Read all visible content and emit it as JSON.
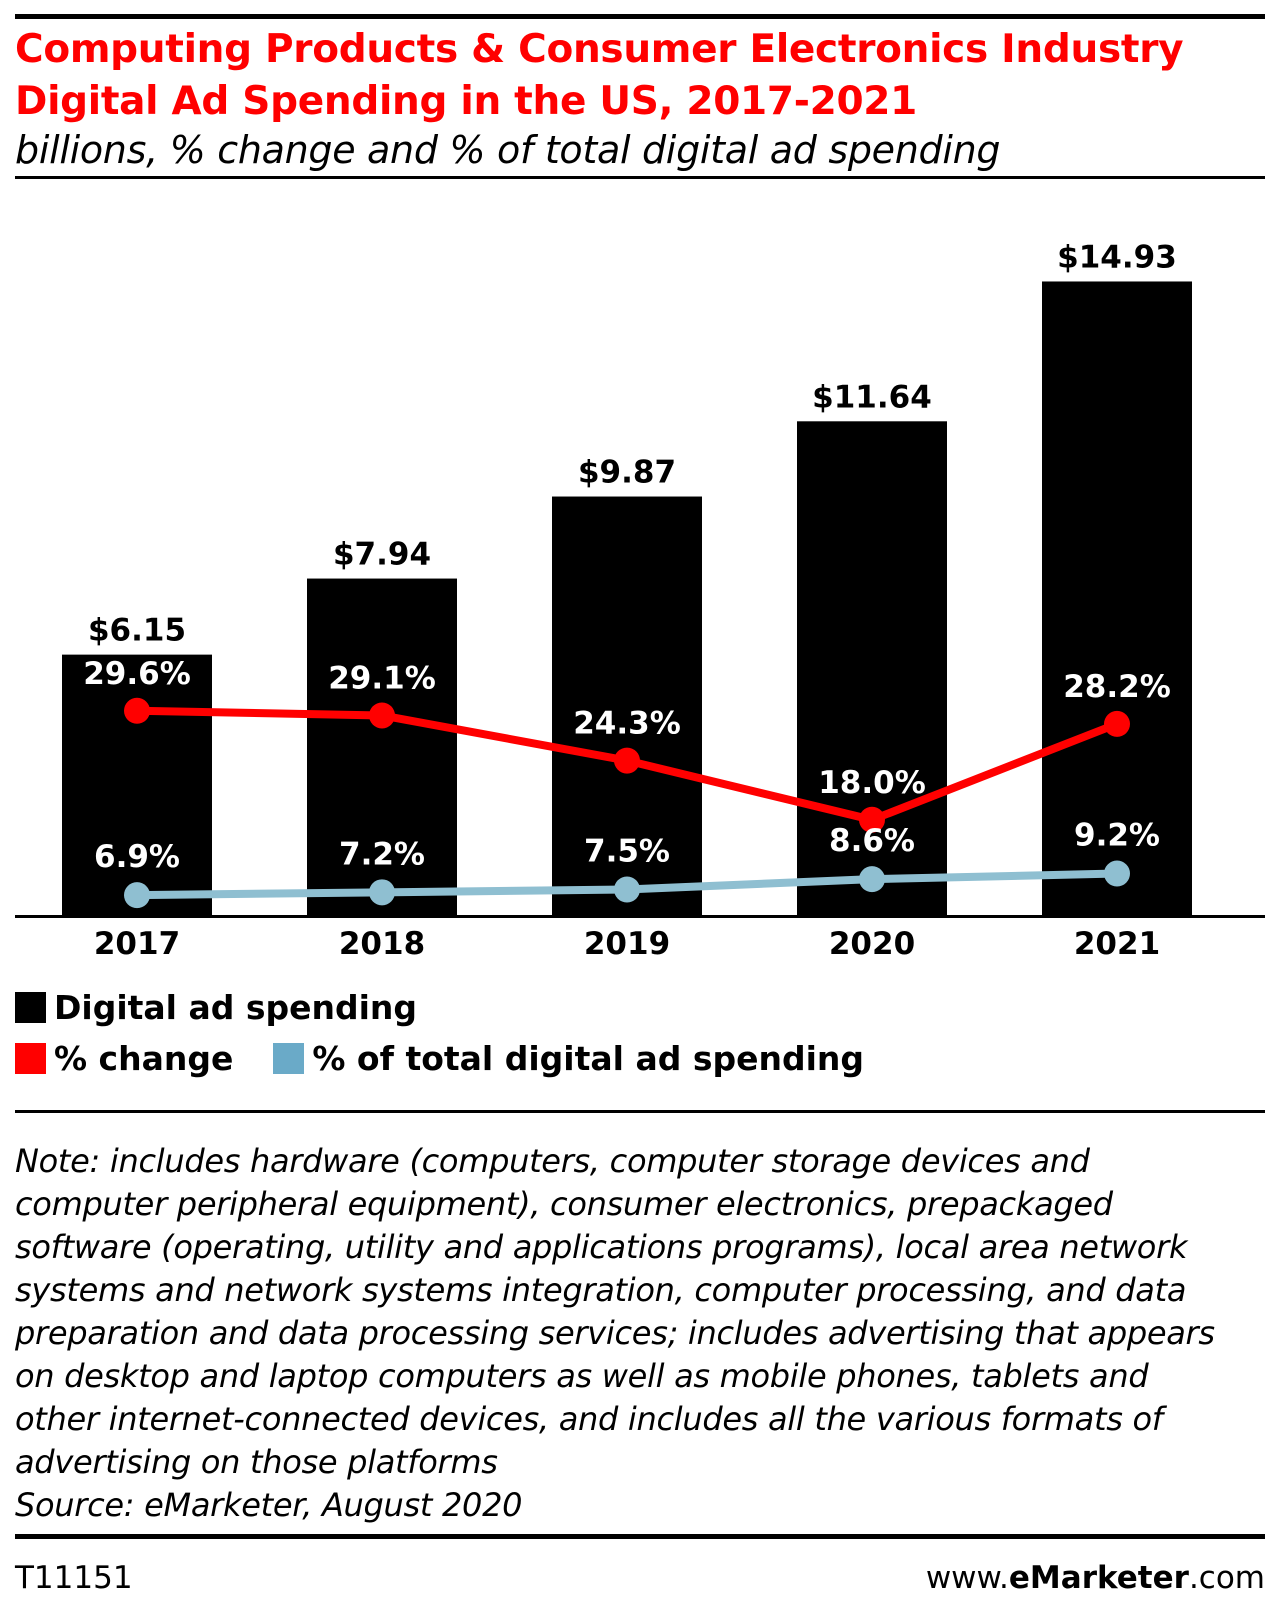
{
  "title_lines": [
    "Computing Products & Consumer Electronics Industry",
    "Digital Ad Spending in the US, 2017-2021"
  ],
  "subtitle": "billions, % change and % of total digital ad spending",
  "colors": {
    "title": "#ff0000",
    "bars": "#000000",
    "pct_change": "#ff0000",
    "pct_total": "#8fbfd1",
    "legend_total_swatch": "#6aaac8"
  },
  "chart_data": {
    "type": "bar",
    "categories": [
      "2017",
      "2018",
      "2019",
      "2020",
      "2021"
    ],
    "series": [
      {
        "name": "Digital ad spending",
        "type": "bar",
        "values": [
          6.15,
          7.94,
          9.87,
          11.64,
          14.93
        ],
        "labels": [
          "$6.15",
          "$7.94",
          "$9.87",
          "$11.64",
          "$14.93"
        ]
      },
      {
        "name": "% change",
        "type": "line",
        "values": [
          29.6,
          29.1,
          24.3,
          18.0,
          28.2
        ],
        "labels": [
          "29.6%",
          "29.1%",
          "24.3%",
          "18.0%",
          "28.2%"
        ]
      },
      {
        "name": "% of total digital ad spending",
        "type": "line",
        "values": [
          6.9,
          7.2,
          7.5,
          8.6,
          9.2
        ],
        "labels": [
          "6.9%",
          "7.2%",
          "7.5%",
          "8.6%",
          "9.2%"
        ]
      }
    ]
  },
  "legend": {
    "spending": "Digital ad spending",
    "change": "% change",
    "total": "% of total digital ad spending"
  },
  "note_lines": [
    "Note: includes hardware (computers, computer storage devices and",
    "computer peripheral equipment), consumer electronics, prepackaged",
    "software (operating, utility and applications programs), local area network",
    "systems and network systems integration, computer processing, and data",
    "preparation and data processing services; includes advertising that appears",
    "on desktop and laptop computers as well as mobile phones, tablets and",
    "other internet-connected devices, and includes all the various formats of",
    "advertising on those platforms",
    "Source: eMarketer, August 2020"
  ],
  "footer": {
    "code": "T11151",
    "brand_prefix": "www.",
    "brand_bold": "eMarketer",
    "brand_suffix": ".com"
  }
}
